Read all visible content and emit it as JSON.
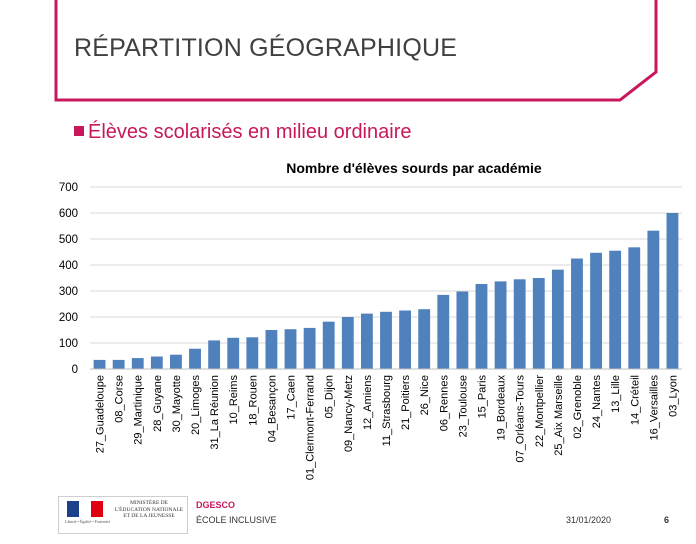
{
  "slide": {
    "title": "RÉPARTITION GÉOGRAPHIQUE",
    "bullet": "Élèves scolarisés en milieu ordinaire",
    "accent_color": "#c8175d"
  },
  "chart_data": {
    "type": "bar",
    "title": "Nombre d'élèves sourds par académie",
    "xlabel": "",
    "ylabel": "",
    "ylim": [
      0,
      700
    ],
    "yticks": [
      0,
      100,
      200,
      300,
      400,
      500,
      600,
      700
    ],
    "grid": true,
    "bar_color": "#4f81bd",
    "categories": [
      "27_Guadeloupe",
      "08_Corse",
      "29_Martinique",
      "28_Guyane",
      "30_Mayotte",
      "20_Limoges",
      "31_La Réunion",
      "10_Reims",
      "18_Rouen",
      "04_Besançon",
      "17_Caen",
      "01_Clermont-Ferrand",
      "05_Dijon",
      "09_Nancy-Metz",
      "12_Amiens",
      "11_Strasbourg",
      "21_Poitiers",
      "26_Nice",
      "06_Rennes",
      "23_Toulouse",
      "15_Paris",
      "19_Bordeaux",
      "07_Orléans-Tours",
      "22_Montpellier",
      "25_Aix Marseille",
      "02_Grenoble",
      "24_Nantes",
      "13_Lille",
      "14_Créteil",
      "16_Versailles",
      "03_Lyon"
    ],
    "values": [
      35,
      35,
      42,
      48,
      55,
      78,
      110,
      120,
      122,
      150,
      153,
      158,
      182,
      200,
      213,
      220,
      225,
      230,
      285,
      298,
      327,
      337,
      345,
      350,
      382,
      425,
      447,
      455,
      468,
      532,
      600
    ]
  },
  "footer": {
    "logo_small": "Liberté • Égalité • Fraternité",
    "logo_text": "MINISTÈRE DE L'ÉDUCATION NATIONALE ET DE LA JEUNESSE",
    "org": "DGESCO",
    "subtitle": "ÉCOLE INCLUSIVE",
    "date": "31/01/2020",
    "page": "6"
  }
}
